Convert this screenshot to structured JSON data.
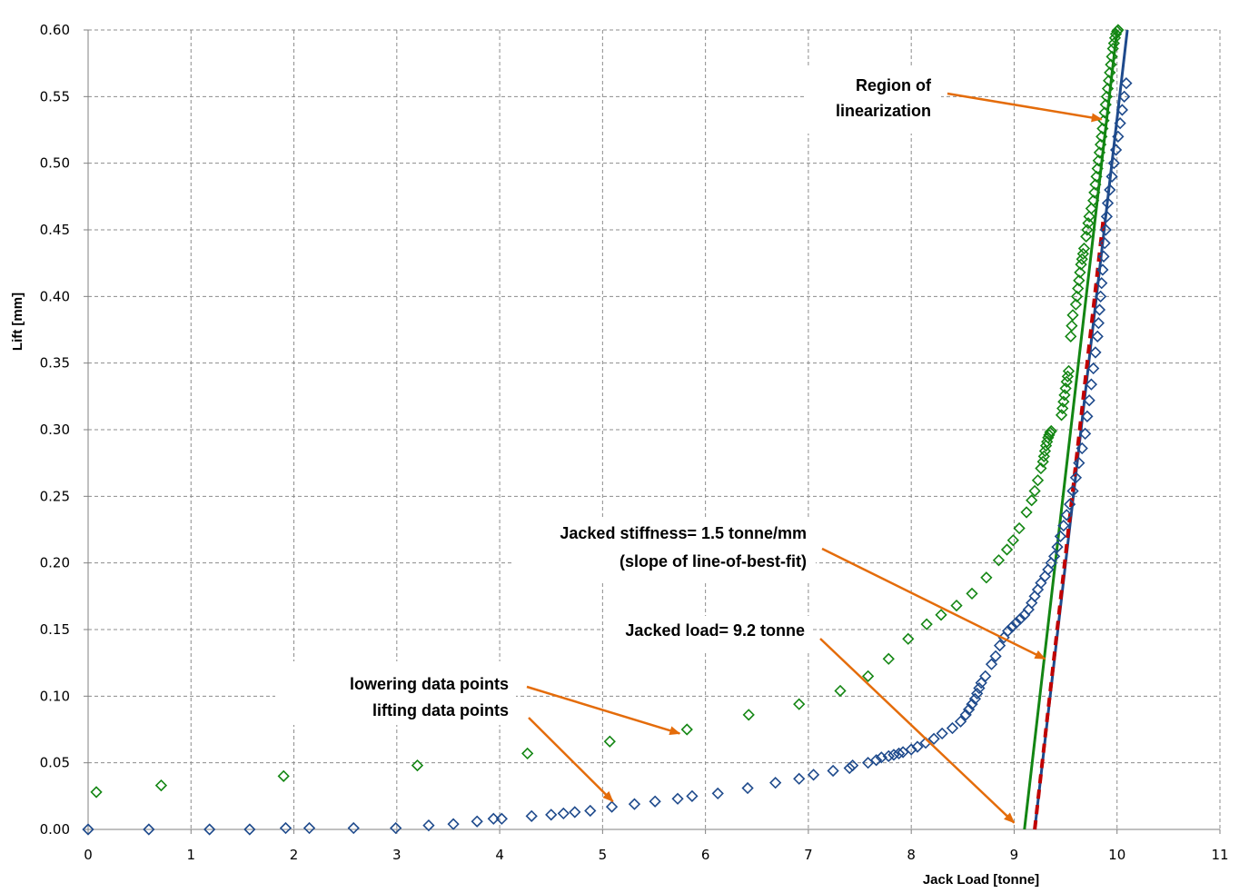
{
  "chart_data": {
    "type": "scatter",
    "xlabel": "Jack Load  [tonne]",
    "ylabel": "Lift  [mm]",
    "xlim": [
      0,
      11
    ],
    "ylim": [
      0,
      0.6
    ],
    "xticks": [
      0,
      1,
      2,
      3,
      4,
      5,
      6,
      7,
      8,
      9,
      10,
      11
    ],
    "yticks": [
      "0.00",
      "0.05",
      "0.10",
      "0.15",
      "0.20",
      "0.25",
      "0.30",
      "0.35",
      "0.40",
      "0.45",
      "0.50",
      "0.55",
      "0.60"
    ],
    "grid": true,
    "colors": {
      "lowering": "#138613",
      "lifting": "#1e4a8c",
      "fit_red": "#c00000",
      "fit_green": "#138613",
      "fit_blue": "#1e4a8c",
      "arrow": "#e46c0a"
    },
    "series": [
      {
        "name": "lowering data points",
        "marker": "diamond-open",
        "x": [
          0.08,
          0.71,
          1.9,
          3.2,
          4.27,
          5.07,
          5.82,
          6.42,
          6.91,
          7.31,
          7.58,
          7.78,
          7.97,
          8.15,
          8.29,
          8.44,
          8.59,
          8.73,
          8.85,
          8.93,
          8.99,
          9.05,
          9.12,
          9.17,
          9.2,
          9.23,
          9.26,
          9.28,
          9.29,
          9.3,
          9.31,
          9.32,
          9.33,
          9.34,
          9.35,
          9.36,
          9.46,
          9.47,
          9.48,
          9.49,
          9.5,
          9.51,
          9.52,
          9.53,
          9.55,
          9.56,
          9.57,
          9.6,
          9.61,
          9.62,
          9.63,
          9.64,
          9.65,
          9.66,
          9.67,
          9.68,
          9.7,
          9.71,
          9.72,
          9.73,
          9.75,
          9.77,
          9.78,
          9.79,
          9.8,
          9.81,
          9.82,
          9.83,
          9.84,
          9.85,
          9.86,
          9.87,
          9.88,
          9.89,
          9.9,
          9.91,
          9.92,
          9.93,
          9.94,
          9.95,
          9.96,
          9.97,
          9.98,
          9.99,
          10.0,
          10.01
        ],
        "y": [
          0.028,
          0.033,
          0.04,
          0.048,
          0.057,
          0.066,
          0.075,
          0.086,
          0.094,
          0.104,
          0.115,
          0.128,
          0.143,
          0.154,
          0.161,
          0.168,
          0.177,
          0.189,
          0.202,
          0.21,
          0.217,
          0.226,
          0.238,
          0.247,
          0.254,
          0.262,
          0.271,
          0.276,
          0.28,
          0.284,
          0.288,
          0.291,
          0.294,
          0.296,
          0.298,
          0.299,
          0.311,
          0.316,
          0.321,
          0.326,
          0.331,
          0.336,
          0.34,
          0.344,
          0.37,
          0.378,
          0.386,
          0.394,
          0.4,
          0.406,
          0.412,
          0.418,
          0.424,
          0.428,
          0.432,
          0.436,
          0.445,
          0.45,
          0.455,
          0.46,
          0.466,
          0.472,
          0.478,
          0.484,
          0.49,
          0.496,
          0.502,
          0.508,
          0.514,
          0.52,
          0.526,
          0.532,
          0.538,
          0.544,
          0.55,
          0.556,
          0.562,
          0.568,
          0.574,
          0.58,
          0.586,
          0.59,
          0.594,
          0.597,
          0.599,
          0.6
        ]
      },
      {
        "name": "lifting data points",
        "marker": "diamond-open",
        "x": [
          0.0,
          0.59,
          1.18,
          1.57,
          1.92,
          2.15,
          2.58,
          2.99,
          3.31,
          3.55,
          3.78,
          3.94,
          4.02,
          4.31,
          4.5,
          4.62,
          4.73,
          4.88,
          5.09,
          5.31,
          5.51,
          5.73,
          5.87,
          6.12,
          6.41,
          6.68,
          6.91,
          7.05,
          7.24,
          7.4,
          7.43,
          7.58,
          7.66,
          7.71,
          7.78,
          7.83,
          7.88,
          7.92,
          8.0,
          8.06,
          8.14,
          8.22,
          8.3,
          8.4,
          8.48,
          8.53,
          8.56,
          8.59,
          8.62,
          8.64,
          8.66,
          8.68,
          8.72,
          8.78,
          8.82,
          8.86,
          8.9,
          8.94,
          8.98,
          9.02,
          9.06,
          9.1,
          9.14,
          9.17,
          9.2,
          9.23,
          9.26,
          9.3,
          9.33,
          9.36,
          9.39,
          9.42,
          9.45,
          9.48,
          9.51,
          9.54,
          9.57,
          9.6,
          9.63,
          9.66,
          9.69,
          9.71,
          9.73,
          9.75,
          9.77,
          9.79,
          9.81,
          9.82,
          9.83,
          9.84,
          9.85,
          9.86,
          9.87,
          9.88,
          9.89,
          9.9,
          9.91,
          9.93,
          9.95,
          9.97,
          9.99,
          10.01,
          10.03,
          10.05,
          10.07,
          10.09
        ],
        "y": [
          0.0,
          0.0,
          0.0,
          0.0,
          0.001,
          0.001,
          0.001,
          0.001,
          0.003,
          0.004,
          0.006,
          0.008,
          0.008,
          0.01,
          0.011,
          0.012,
          0.013,
          0.014,
          0.017,
          0.019,
          0.021,
          0.023,
          0.025,
          0.027,
          0.031,
          0.035,
          0.038,
          0.041,
          0.044,
          0.046,
          0.048,
          0.05,
          0.052,
          0.054,
          0.055,
          0.056,
          0.057,
          0.058,
          0.06,
          0.062,
          0.065,
          0.068,
          0.072,
          0.076,
          0.081,
          0.086,
          0.09,
          0.094,
          0.098,
          0.102,
          0.106,
          0.11,
          0.115,
          0.124,
          0.13,
          0.138,
          0.144,
          0.149,
          0.152,
          0.155,
          0.158,
          0.161,
          0.165,
          0.17,
          0.175,
          0.18,
          0.185,
          0.19,
          0.195,
          0.2,
          0.205,
          0.212,
          0.22,
          0.228,
          0.236,
          0.244,
          0.254,
          0.264,
          0.275,
          0.286,
          0.297,
          0.31,
          0.322,
          0.334,
          0.346,
          0.358,
          0.37,
          0.38,
          0.39,
          0.4,
          0.41,
          0.42,
          0.43,
          0.44,
          0.45,
          0.46,
          0.47,
          0.48,
          0.49,
          0.5,
          0.51,
          0.52,
          0.53,
          0.54,
          0.55,
          0.56
        ]
      }
    ],
    "fit_lines": [
      {
        "name": "red dashed fit",
        "style": "dashed",
        "x": [
          9.2,
          9.87
        ],
        "y": [
          0.0,
          0.46
        ]
      },
      {
        "name": "green fit",
        "style": "solid",
        "x": [
          9.1,
          10.0
        ],
        "y": [
          0.0,
          0.6
        ]
      },
      {
        "name": "blue fit",
        "style": "solid",
        "x": [
          9.2,
          10.1
        ],
        "y": [
          0.0,
          0.6
        ]
      }
    ],
    "annotations": [
      {
        "name": "region",
        "lines": [
          "Region of",
          "linearization"
        ],
        "target": [
          9.85,
          0.533
        ]
      },
      {
        "name": "stiffness",
        "lines": [
          "Jacked stiffness= 1.5 tonne/mm",
          "(slope of line-of-best-fit)"
        ],
        "target": [
          9.3,
          0.128
        ]
      },
      {
        "name": "jacked-load",
        "lines": [
          "Jacked load= 9.2 tonne"
        ],
        "target": [
          9.0,
          0.005
        ]
      },
      {
        "name": "lowering",
        "lines": [
          "lowering data points"
        ],
        "target": [
          5.75,
          0.072
        ]
      },
      {
        "name": "lifting",
        "lines": [
          "lifting data points"
        ],
        "target": [
          5.1,
          0.021
        ]
      }
    ]
  }
}
